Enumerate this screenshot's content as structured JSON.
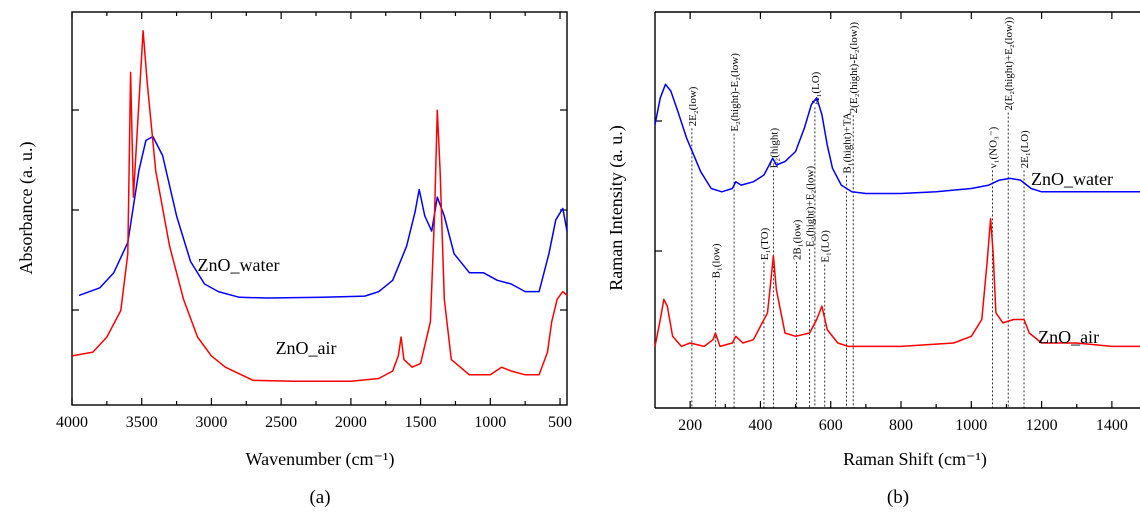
{
  "chart_data": [
    {
      "panel": "(a)",
      "type": "line",
      "xlabel": "Wavenumber (cm⁻¹)",
      "ylabel": "Absorbance (a. u.)",
      "xlim": [
        4000,
        450
      ],
      "x_reversed": true,
      "x_ticks": [
        "4000",
        "3500",
        "3000",
        "2500",
        "2000",
        "1500",
        "1000",
        "500"
      ],
      "y_tick_labels": "none",
      "series": [
        {
          "name": "ZnO_water",
          "color": "#0000ff",
          "points": [
            [
              3950,
              0.29
            ],
            [
              3800,
              0.31
            ],
            [
              3700,
              0.35
            ],
            [
              3600,
              0.43
            ],
            [
              3520,
              0.62
            ],
            [
              3470,
              0.7
            ],
            [
              3420,
              0.71
            ],
            [
              3350,
              0.66
            ],
            [
              3250,
              0.5
            ],
            [
              3150,
              0.38
            ],
            [
              3050,
              0.32
            ],
            [
              2950,
              0.3
            ],
            [
              2800,
              0.285
            ],
            [
              2600,
              0.283
            ],
            [
              2200,
              0.285
            ],
            [
              1900,
              0.288
            ],
            [
              1800,
              0.3
            ],
            [
              1700,
              0.33
            ],
            [
              1600,
              0.42
            ],
            [
              1540,
              0.51
            ],
            [
              1510,
              0.57
            ],
            [
              1470,
              0.5
            ],
            [
              1420,
              0.46
            ],
            [
              1380,
              0.55
            ],
            [
              1330,
              0.5
            ],
            [
              1260,
              0.4
            ],
            [
              1150,
              0.35
            ],
            [
              1050,
              0.35
            ],
            [
              950,
              0.33
            ],
            [
              850,
              0.32
            ],
            [
              750,
              0.3
            ],
            [
              650,
              0.3
            ],
            [
              580,
              0.4
            ],
            [
              530,
              0.49
            ],
            [
              480,
              0.52
            ],
            [
              450,
              0.46
            ]
          ]
        },
        {
          "name": "ZnO_air",
          "color": "#ff0000",
          "points": [
            [
              4000,
              0.13
            ],
            [
              3850,
              0.14
            ],
            [
              3750,
              0.18
            ],
            [
              3650,
              0.25
            ],
            [
              3600,
              0.4
            ],
            [
              3580,
              0.88
            ],
            [
              3560,
              0.55
            ],
            [
              3520,
              0.8
            ],
            [
              3490,
              0.99
            ],
            [
              3460,
              0.85
            ],
            [
              3400,
              0.62
            ],
            [
              3300,
              0.42
            ],
            [
              3200,
              0.28
            ],
            [
              3100,
              0.18
            ],
            [
              3000,
              0.13
            ],
            [
              2900,
              0.1
            ],
            [
              2700,
              0.065
            ],
            [
              2400,
              0.063
            ],
            [
              2000,
              0.063
            ],
            [
              1800,
              0.07
            ],
            [
              1700,
              0.09
            ],
            [
              1660,
              0.13
            ],
            [
              1640,
              0.18
            ],
            [
              1620,
              0.12
            ],
            [
              1560,
              0.1
            ],
            [
              1500,
              0.11
            ],
            [
              1430,
              0.22
            ],
            [
              1400,
              0.5
            ],
            [
              1380,
              0.78
            ],
            [
              1360,
              0.62
            ],
            [
              1330,
              0.28
            ],
            [
              1280,
              0.12
            ],
            [
              1150,
              0.08
            ],
            [
              1000,
              0.08
            ],
            [
              920,
              0.1
            ],
            [
              850,
              0.09
            ],
            [
              750,
              0.08
            ],
            [
              650,
              0.08
            ],
            [
              590,
              0.14
            ],
            [
              560,
              0.22
            ],
            [
              520,
              0.28
            ],
            [
              480,
              0.3
            ],
            [
              450,
              0.29
            ]
          ]
        }
      ]
    },
    {
      "panel": "(b)",
      "type": "line",
      "xlabel": "Raman Shift (cm⁻¹)",
      "ylabel": "Raman Intensity (a. u.)",
      "xlim": [
        100,
        1480
      ],
      "x_ticks": [
        "200",
        "400",
        "600",
        "800",
        "1000",
        "1200",
        "1400"
      ],
      "y_tick_labels": "none",
      "series": [
        {
          "name": "ZnO_water",
          "color": "#0000ff",
          "points": [
            [
              100,
              0.76
            ],
            [
              115,
              0.84
            ],
            [
              130,
              0.88
            ],
            [
              145,
              0.86
            ],
            [
              165,
              0.8
            ],
            [
              190,
              0.72
            ],
            [
              210,
              0.67
            ],
            [
              230,
              0.62
            ],
            [
              260,
              0.57
            ],
            [
              290,
              0.56
            ],
            [
              320,
              0.57
            ],
            [
              330,
              0.59
            ],
            [
              345,
              0.58
            ],
            [
              380,
              0.59
            ],
            [
              410,
              0.61
            ],
            [
              425,
              0.64
            ],
            [
              435,
              0.66
            ],
            [
              445,
              0.64
            ],
            [
              470,
              0.65
            ],
            [
              500,
              0.68
            ],
            [
              525,
              0.75
            ],
            [
              545,
              0.82
            ],
            [
              560,
              0.84
            ],
            [
              575,
              0.79
            ],
            [
              590,
              0.7
            ],
            [
              605,
              0.63
            ],
            [
              630,
              0.58
            ],
            [
              660,
              0.56
            ],
            [
              700,
              0.555
            ],
            [
              800,
              0.555
            ],
            [
              900,
              0.56
            ],
            [
              1000,
              0.57
            ],
            [
              1050,
              0.58
            ],
            [
              1080,
              0.595
            ],
            [
              1110,
              0.6
            ],
            [
              1140,
              0.595
            ],
            [
              1170,
              0.57
            ],
            [
              1200,
              0.56
            ],
            [
              1300,
              0.56
            ],
            [
              1400,
              0.56
            ],
            [
              1480,
              0.56
            ]
          ]
        },
        {
          "name": "ZnO_air",
          "color": "#ff0000",
          "points": [
            [
              100,
              0.1
            ],
            [
              115,
              0.18
            ],
            [
              125,
              0.24
            ],
            [
              135,
              0.22
            ],
            [
              150,
              0.13
            ],
            [
              175,
              0.1
            ],
            [
              200,
              0.11
            ],
            [
              240,
              0.1
            ],
            [
              265,
              0.12
            ],
            [
              272,
              0.14
            ],
            [
              285,
              0.1
            ],
            [
              320,
              0.11
            ],
            [
              330,
              0.13
            ],
            [
              350,
              0.11
            ],
            [
              380,
              0.12
            ],
            [
              405,
              0.17
            ],
            [
              420,
              0.2
            ],
            [
              430,
              0.3
            ],
            [
              437,
              0.37
            ],
            [
              445,
              0.27
            ],
            [
              470,
              0.14
            ],
            [
              500,
              0.13
            ],
            [
              540,
              0.14
            ],
            [
              560,
              0.18
            ],
            [
              575,
              0.22
            ],
            [
              590,
              0.15
            ],
            [
              620,
              0.11
            ],
            [
              650,
              0.1
            ],
            [
              800,
              0.1
            ],
            [
              950,
              0.11
            ],
            [
              1000,
              0.13
            ],
            [
              1030,
              0.18
            ],
            [
              1045,
              0.35
            ],
            [
              1055,
              0.48
            ],
            [
              1062,
              0.38
            ],
            [
              1070,
              0.2
            ],
            [
              1090,
              0.17
            ],
            [
              1120,
              0.18
            ],
            [
              1150,
              0.18
            ],
            [
              1165,
              0.14
            ],
            [
              1200,
              0.11
            ],
            [
              1300,
              0.11
            ],
            [
              1400,
              0.1
            ],
            [
              1480,
              0.1
            ]
          ]
        }
      ]
    }
  ],
  "panel_a": {
    "label": "(a)",
    "series_labels": [
      {
        "text": "ZnO_water",
        "anchor_x": 3100,
        "anchor_y": 0.355
      },
      {
        "text": "ZnO_air",
        "anchor_x": 2540,
        "anchor_y": 0.135
      }
    ]
  },
  "panel_b": {
    "label": "(b)",
    "series_labels": [
      {
        "text": "ZnO_water",
        "anchor_x": 1170,
        "anchor_y": 0.58
      },
      {
        "text": "ZnO_air",
        "anchor_x": 1190,
        "anchor_y": 0.11
      }
    ],
    "mode_annotations": [
      {
        "text": "2E₂(low)",
        "x": 205,
        "top": 0.96,
        "bottom": 0.0
      },
      {
        "text": "E₂(hight)-E₂(low)",
        "x": 325,
        "top": 0.94,
        "bottom": 0.0
      },
      {
        "text": "E₂(hight)",
        "x": 437,
        "top": 0.8,
        "bottom": 0.0
      },
      {
        "text": "A₁(LO)",
        "x": 555,
        "top": 1.04,
        "bottom": 0.0
      },
      {
        "text": "B₁(hight)+TA",
        "x": 645,
        "top": 0.78,
        "bottom": 0.0
      },
      {
        "text": "2(E₂(hight)-E₂(low))",
        "x": 664,
        "top": 1.01,
        "bottom": 0.0
      },
      {
        "text": "B₁(low)",
        "x": 272,
        "top": 0.38,
        "bottom": 0.0
      },
      {
        "text": "E₁(TO)",
        "x": 410,
        "top": 0.45,
        "bottom": 0.0
      },
      {
        "text": "2B₁(low)",
        "x": 503,
        "top": 0.45,
        "bottom": 0.0
      },
      {
        "text": "E₂(hight)+E₂(low)",
        "x": 540,
        "top": 0.5,
        "bottom": 0.0
      },
      {
        "text": "E₁(LO)",
        "x": 583,
        "top": 0.44,
        "bottom": 0.0
      },
      {
        "text": "ν₁(NO₃⁻)",
        "x": 1060,
        "top": 0.8,
        "bottom": 0.0
      },
      {
        "text": "2(E₂(hight)+E₂(low))",
        "x": 1105,
        "top": 1.02,
        "bottom": 0.0
      },
      {
        "text": "2E₁(LO)",
        "x": 1150,
        "top": 0.8,
        "bottom": 0.0
      }
    ]
  }
}
